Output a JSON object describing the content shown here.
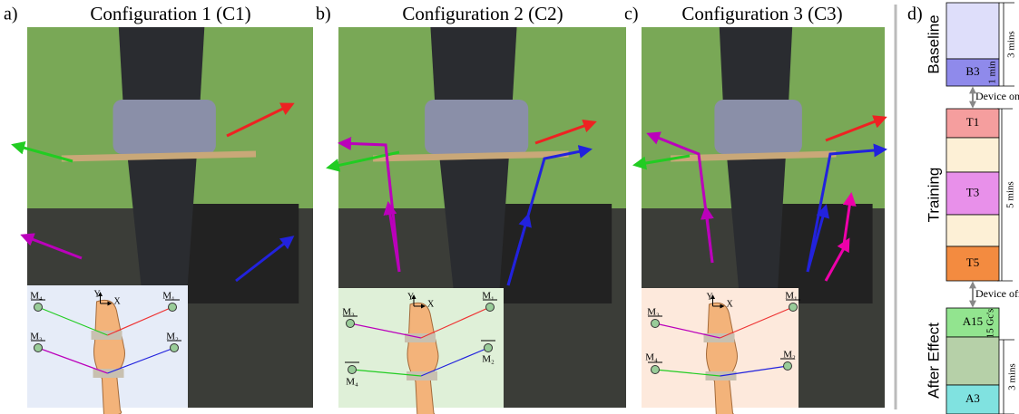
{
  "panels": [
    {
      "letter": "a)",
      "title": "Configuration 1 (C1)",
      "inset": {
        "markers": [
          "M₄",
          "M₁",
          "M₃",
          "M₂"
        ],
        "axes": [
          "Y",
          "X"
        ]
      }
    },
    {
      "letter": "b)",
      "title": "Configuration 2 (C2)",
      "inset": {
        "markers": [
          "M₃",
          "M₁",
          "M₂",
          "M₄"
        ],
        "axes": [
          "Y",
          "X"
        ]
      }
    },
    {
      "letter": "c)",
      "title": "Configuration 3 (C3)",
      "inset": {
        "markers": [
          "M₃",
          "M₁",
          "M₂",
          "M₄"
        ],
        "axes": [
          "Y",
          "X"
        ]
      }
    }
  ],
  "timeline": {
    "letter": "d)",
    "baseline": {
      "label": "Baseline",
      "blocks": [
        "B3"
      ],
      "durations": [
        "3 mins",
        "1 min"
      ]
    },
    "device_on": "Device on",
    "training": {
      "label": "Training",
      "blocks": [
        "T1",
        "T3",
        "T5"
      ],
      "durations": [
        "5 mins"
      ]
    },
    "device_off": "Device off",
    "after_effect": {
      "label": "After Effect",
      "blocks": [
        "A15",
        "A3"
      ],
      "durations": [
        "15 Gc's",
        "3 mins"
      ]
    }
  }
}
